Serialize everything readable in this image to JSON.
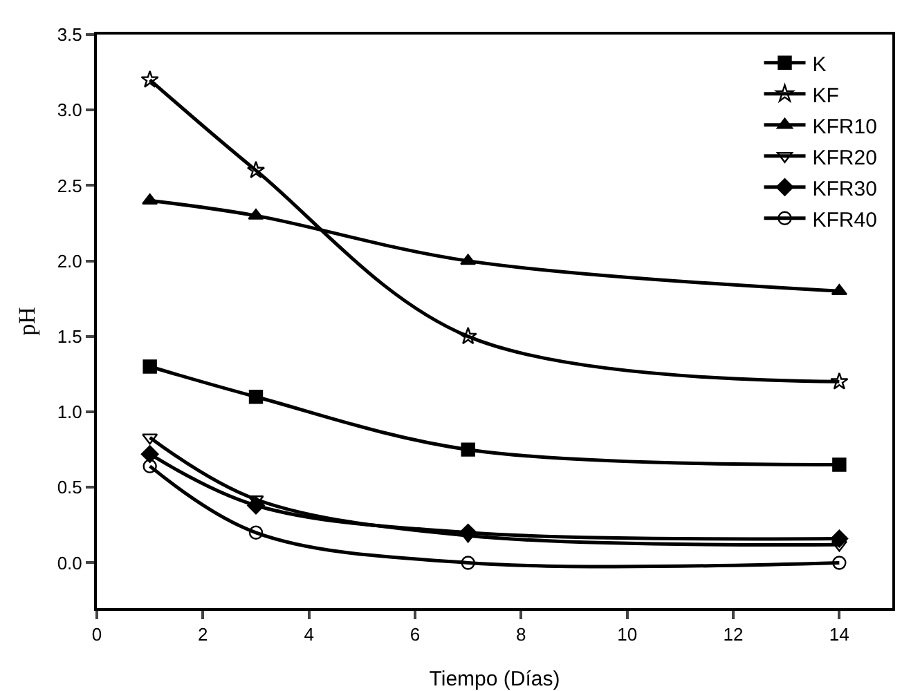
{
  "chart_data": {
    "type": "line",
    "xlabel": "Tiempo (Días)",
    "ylabel": "pH",
    "x": [
      1,
      3,
      7,
      14
    ],
    "xlim": [
      0,
      15
    ],
    "xticks": [
      0,
      2,
      4,
      6,
      8,
      10,
      12,
      14
    ],
    "ylim": [
      -0.3,
      3.5
    ],
    "yticks": [
      {
        "value": 0,
        "label": "0.0"
      },
      0.5,
      {
        "value": 1,
        "label": "1.0"
      },
      1.5,
      {
        "value": 2,
        "label": "2.0"
      },
      2.5,
      {
        "value": 3,
        "label": "3.0"
      },
      3.5
    ],
    "grid": false,
    "legend": "top right",
    "line_style": "solid",
    "series": [
      {
        "name": "K",
        "color": "#000000",
        "marker": "square",
        "values": [
          1.3,
          1.1,
          0.75,
          0.65
        ]
      },
      {
        "name": "KF",
        "color": "#000000",
        "marker": "star",
        "values": [
          3.2,
          2.6,
          1.5,
          1.2
        ]
      },
      {
        "name": "KFR10",
        "color": "#000000",
        "marker": "triangle",
        "values": [
          2.4,
          2.3,
          2.0,
          1.8
        ]
      },
      {
        "name": "KFR20",
        "color": "#000000",
        "marker": "triangle-down-open",
        "values": [
          0.83,
          0.42,
          0.18,
          0.12
        ]
      },
      {
        "name": "KFR30",
        "color": "#000000",
        "marker": "diamond",
        "values": [
          0.72,
          0.38,
          0.2,
          0.16
        ]
      },
      {
        "name": "KFR40",
        "color": "#000000",
        "marker": "circle-open",
        "values": [
          0.64,
          0.2,
          0.0,
          0.0
        ]
      }
    ]
  }
}
